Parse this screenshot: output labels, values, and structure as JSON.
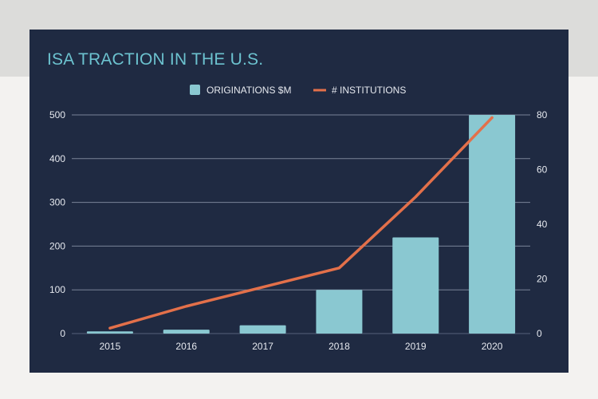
{
  "chart_data": {
    "type": "bar",
    "title": "ISA TRACTION IN THE U.S.",
    "categories": [
      "2015",
      "2016",
      "2017",
      "2018",
      "2019",
      "2020"
    ],
    "series": [
      {
        "name": "ORIGINATIONS $M",
        "type": "bar",
        "axis": "left",
        "color": "#8ac8d1",
        "values": [
          5,
          9,
          19,
          100,
          220,
          500
        ]
      },
      {
        "name": "# INSTITUTIONS",
        "type": "line",
        "axis": "right",
        "color": "#e3704a",
        "values": [
          2,
          10,
          17,
          24,
          50,
          79
        ]
      }
    ],
    "y_left": {
      "ylim": [
        0,
        500
      ],
      "ticks": [
        "0",
        "100",
        "200",
        "300",
        "400",
        "500"
      ]
    },
    "y_right": {
      "ylim": [
        0,
        80
      ],
      "ticks": [
        "0",
        "20",
        "40",
        "60",
        "80"
      ]
    },
    "grid": true,
    "legend_position": "top-center"
  }
}
